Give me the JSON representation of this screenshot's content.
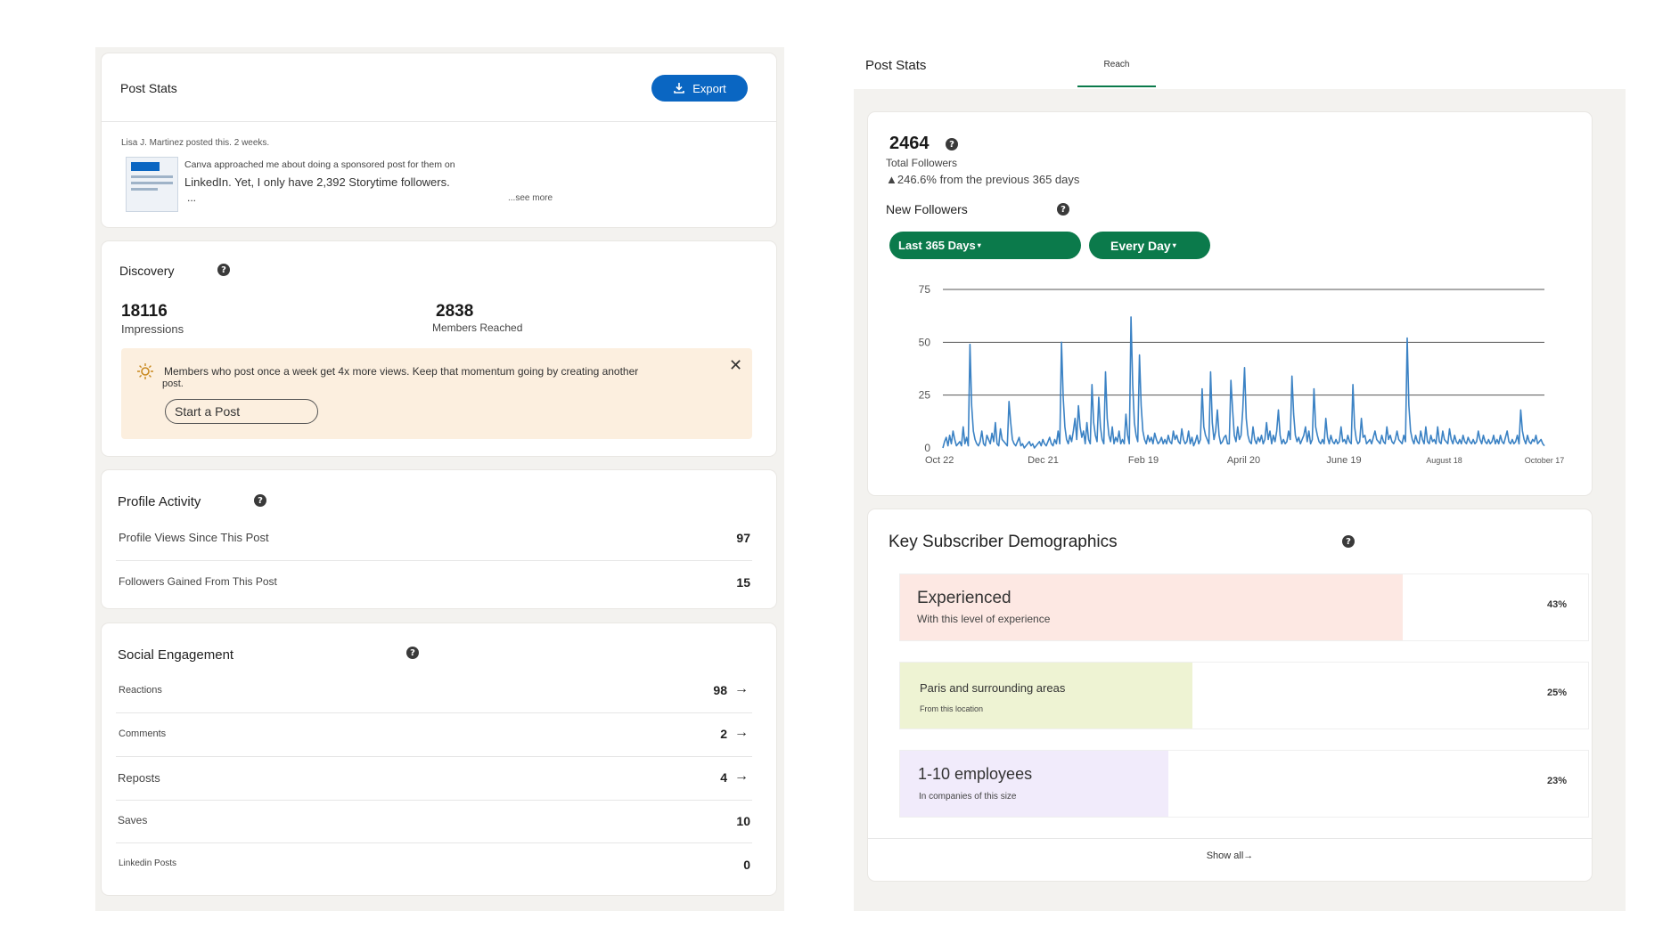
{
  "left": {
    "post_stats": {
      "title": "Post Stats",
      "export_label": "Export",
      "author_line": "Lisa J. Martinez posted this. 2 weeks.",
      "excerpt_line1": "Canva approached me about doing a sponsored post for them on",
      "excerpt_line2": "LinkedIn. Yet, I only have 2,392 Storytime followers.",
      "excerpt_more": "...",
      "see_more": "...see more"
    },
    "discovery": {
      "title": "Discovery",
      "impressions_value": "18116",
      "impressions_label": "Impressions",
      "members_value": "2838",
      "members_label": "Members Reached",
      "tip_text": "Members who post once a week get 4x more views. Keep that momentum going by creating another",
      "tip_text2": "post.",
      "start_post_label": "Start a Post"
    },
    "profile_activity": {
      "title": "Profile Activity",
      "rows": [
        {
          "label": "Profile Views Since This Post",
          "value": "97"
        },
        {
          "label": "Followers Gained From This Post",
          "value": "15"
        }
      ]
    },
    "social_engagement": {
      "title": "Social Engagement",
      "rows": [
        {
          "label": "Reactions",
          "value": "98"
        },
        {
          "label": "Comments",
          "value": "2"
        },
        {
          "label": "Reposts",
          "value": "4"
        },
        {
          "label": "Saves",
          "value": "10"
        },
        {
          "label": "Linkedin Posts",
          "value": "0"
        }
      ]
    }
  },
  "right": {
    "header": {
      "title": "Post Stats",
      "tab_label": "Reach"
    },
    "followers": {
      "total": "2464",
      "total_label": "Total Followers",
      "change_text": "▲246.6% from the previous 365 days",
      "new_followers_label": "New Followers",
      "range_button": "Last 365 Days",
      "freq_button": "Every Day"
    },
    "demographics": {
      "title": "Key Subscriber Demographics",
      "rows": [
        {
          "title": "Experienced",
          "subtitle": "With this level of experience",
          "percent": "43%",
          "fraction": 0.43,
          "color": "#fde8e3"
        },
        {
          "title": "Paris and surrounding areas",
          "subtitle": "From this location",
          "percent": "25%",
          "fraction": 0.25,
          "color": "#eef3d3"
        },
        {
          "title": "1-10 employees",
          "subtitle": "In companies of this size",
          "percent": "23%",
          "fraction": 0.23,
          "color": "#f1ebfb"
        }
      ],
      "show_all": "Show all→"
    }
  },
  "colors": {
    "accent_blue": "#0a66c2",
    "accent_green": "#0b7a4b",
    "line_blue": "#3b82c4",
    "tip_bg": "#fcefdf"
  },
  "chart_data": {
    "type": "line",
    "title": "",
    "xlabel": "",
    "ylabel": "",
    "ylim": [
      0,
      75
    ],
    "yticks": [
      "0",
      "25",
      "50",
      "75"
    ],
    "xticks": [
      {
        "label": "Oct 22",
        "day": 0
      },
      {
        "label": "Dec 21",
        "day": 60
      },
      {
        "label": "Feb 19",
        "day": 120
      },
      {
        "label": "April 20",
        "day": 180
      },
      {
        "label": "June 19",
        "day": 240
      },
      {
        "label": "August 18",
        "day": 300
      },
      {
        "label": "October 17",
        "day": 360
      }
    ],
    "grid": true,
    "series": [
      {
        "values": [
          0,
          3,
          5,
          1,
          6,
          2,
          8,
          4,
          1,
          2,
          3,
          1,
          10,
          2,
          5,
          1,
          49,
          20,
          8,
          4,
          2,
          1,
          3,
          8,
          2,
          1,
          6,
          4,
          2,
          7,
          3,
          12,
          2,
          1,
          9,
          4,
          3,
          2,
          1,
          22,
          12,
          4,
          2,
          1,
          3,
          5,
          1,
          2,
          0,
          1,
          2,
          3,
          1,
          2,
          0,
          1,
          2,
          3,
          1,
          4,
          2,
          1,
          3,
          5,
          2,
          1,
          4,
          2,
          8,
          2,
          50,
          24,
          10,
          4,
          2,
          6,
          3,
          8,
          14,
          4,
          20,
          10,
          5,
          8,
          2,
          12,
          4,
          2,
          30,
          12,
          6,
          3,
          24,
          10,
          4,
          2,
          36,
          14,
          6,
          3,
          10,
          2,
          5,
          3,
          8,
          2,
          4,
          2,
          16,
          6,
          2,
          62,
          30,
          12,
          6,
          3,
          44,
          20,
          8,
          4,
          2,
          6,
          3,
          5,
          2,
          7,
          4,
          2,
          3,
          5,
          2,
          4,
          2,
          6,
          3,
          2,
          8,
          4,
          6,
          3,
          2,
          9,
          4,
          2,
          3,
          8,
          2,
          5,
          1,
          3,
          6,
          2,
          4,
          28,
          10,
          6,
          4,
          2,
          36,
          12,
          4,
          8,
          18,
          6,
          2,
          3,
          5,
          6,
          2,
          2,
          32,
          18,
          6,
          3,
          10,
          4,
          6,
          18,
          38,
          14,
          6,
          3,
          2,
          10,
          4,
          2,
          5,
          3,
          6,
          2,
          4,
          12,
          4,
          8,
          2,
          6,
          3,
          8,
          18,
          6,
          2,
          4,
          2,
          3,
          8,
          4,
          34,
          16,
          6,
          3,
          5,
          2,
          4,
          6,
          10,
          3,
          8,
          2,
          4,
          28,
          10,
          6,
          3,
          2,
          4,
          2,
          14,
          5,
          2,
          6,
          3,
          2,
          4,
          2,
          3,
          10,
          3,
          4,
          2,
          6,
          3,
          2,
          30,
          10,
          4,
          2,
          3,
          14,
          5,
          6,
          2,
          3,
          4,
          2,
          5,
          8,
          4,
          3,
          2,
          6,
          3,
          2,
          10,
          4,
          6,
          3,
          2,
          4,
          8,
          4,
          3,
          2,
          6,
          3,
          52,
          20,
          8,
          4,
          2,
          6,
          3,
          2,
          8,
          4,
          2,
          10,
          3,
          2,
          6,
          3,
          4,
          2,
          10,
          3,
          2,
          8,
          4,
          3,
          2,
          9,
          4,
          2,
          6,
          3,
          2,
          4,
          2,
          6,
          3,
          2,
          5,
          3,
          2,
          4,
          2,
          3,
          8,
          4,
          2,
          6,
          3,
          2,
          4,
          2,
          3,
          6,
          2,
          4,
          2,
          6,
          3,
          2,
          5,
          8,
          3,
          2,
          4,
          2,
          3,
          6,
          2,
          18,
          8,
          4,
          2,
          6,
          3,
          2,
          4,
          3,
          6,
          2,
          3,
          4,
          2,
          1
        ]
      }
    ]
  }
}
